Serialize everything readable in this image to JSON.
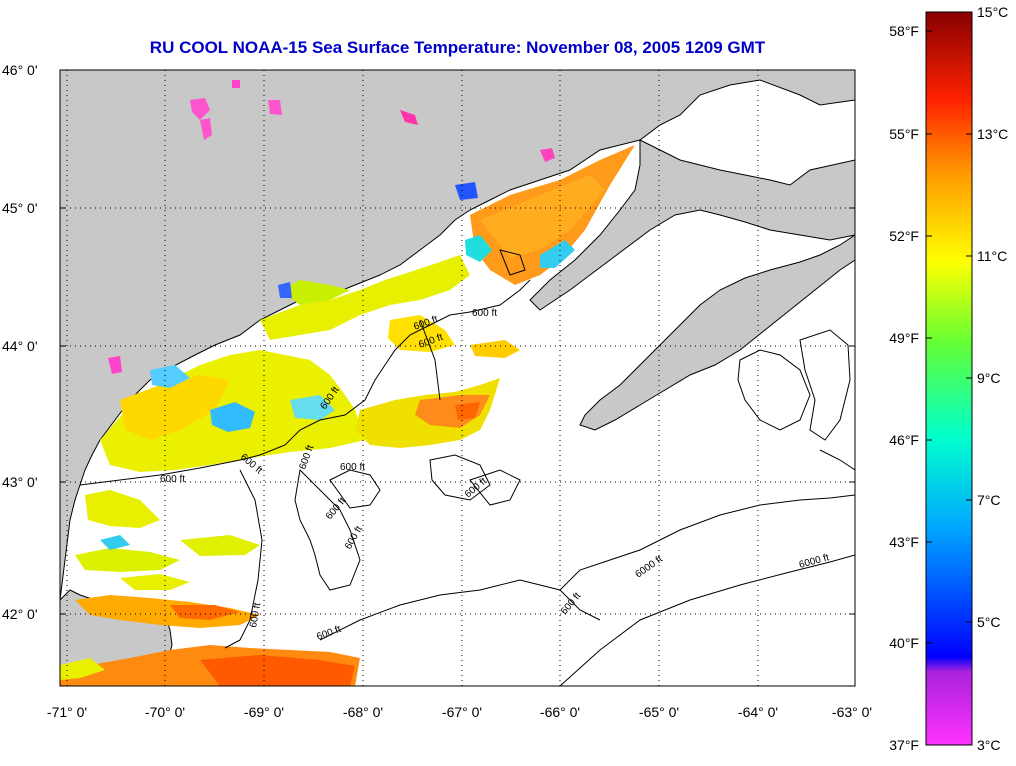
{
  "title": "RU COOL  NOAA-15  Sea Surface Temperature:  November 08, 2005 1209 GMT",
  "latitude_labels": [
    "46° 0'",
    "45° 0'",
    "44° 0'",
    "43° 0'",
    "42° 0'"
  ],
  "longitude_labels": [
    "-71° 0'",
    "-70° 0'",
    "-69° 0'",
    "-68° 0'",
    "-67° 0'",
    "-66° 0'",
    "-65° 0'",
    "-64° 0'",
    "-63° 0'"
  ],
  "contour_labels": [
    "600 ft",
    "600 ft",
    "600 ft",
    "600 ft",
    "600 ft",
    "600 ft",
    "600 ft",
    "600 ft",
    "600 ft",
    "600 ft",
    "600 ft",
    "600 ft",
    "600 ft",
    "600 ft",
    "6000 ft",
    "6000 ft"
  ],
  "colorbar": {
    "fahrenheit_labels": [
      "58°F",
      "55°F",
      "52°F",
      "49°F",
      "46°F",
      "43°F",
      "40°F",
      "37°F"
    ],
    "celsius_labels": [
      "15°C",
      "13°C",
      "11°C",
      "9°C",
      "7°C",
      "5°C",
      "3°C"
    ],
    "range_celsius": [
      3,
      15
    ],
    "range_fahrenheit": [
      37.4,
      59
    ]
  },
  "colors": {
    "land": "#c8c8c8",
    "ocean_no_data": "#ffffff",
    "title": "#0000c8"
  }
}
